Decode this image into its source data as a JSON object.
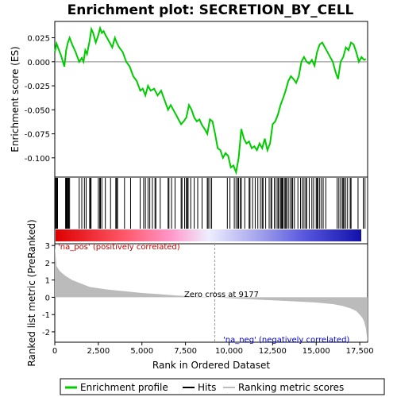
{
  "chart_data": {
    "type": "line",
    "title": "Enrichment plot: SECRETION_BY_CELL",
    "xlabel": "Rank in Ordered Dataset",
    "ylabel_top": "Enrichment score (ES)",
    "ylabel_bottom": "Ranked list metric (PreRanked)",
    "xlim": [
      0,
      17950
    ],
    "es_ylim": [
      -0.12,
      0.042
    ],
    "metric_ylim": [
      -2.6,
      3.1
    ],
    "x_ticks": [
      0,
      2500,
      5000,
      7500,
      10000,
      12500,
      15000,
      17500
    ],
    "x_tick_labels": [
      "0",
      "2,500",
      "5,000",
      "7,500",
      "10,000",
      "12,500",
      "15,000",
      "17,500"
    ],
    "es_ticks": [
      0.025,
      0.0,
      -0.025,
      -0.05,
      -0.075,
      -0.1
    ],
    "es_tick_labels": [
      "0.025",
      "0.000",
      "-0.025",
      "-0.050",
      "-0.075",
      "-0.100"
    ],
    "metric_ticks": [
      3,
      2,
      1,
      0,
      -1,
      -2
    ],
    "metric_tick_labels": [
      "3",
      "2",
      "1",
      "0",
      "-1",
      "-2"
    ],
    "annotation_pos": "'na_pos' (positively correlated)",
    "annotation_neg": "'na_neg' (negatively correlated)",
    "annotation_zero": "Zero cross at 9177",
    "zero_cross": 9177,
    "series": [
      {
        "name": "Enrichment profile",
        "color": "#00cc00",
        "x": [
          0,
          100,
          200,
          350,
          550,
          650,
          750,
          850,
          1000,
          1200,
          1400,
          1550,
          1650,
          1750,
          1850,
          2000,
          2100,
          2200,
          2350,
          2500,
          2600,
          2700,
          2800,
          2900,
          3000,
          3150,
          3300,
          3450,
          3550,
          3700,
          3900,
          4100,
          4300,
          4500,
          4700,
          4900,
          5050,
          5200,
          5350,
          5500,
          5700,
          5900,
          6100,
          6300,
          6500,
          6650,
          6800,
          6950,
          7100,
          7250,
          7400,
          7550,
          7700,
          7850,
          8000,
          8150,
          8300,
          8450,
          8600,
          8750,
          8900,
          9050,
          9200,
          9350,
          9500,
          9650,
          9800,
          9950,
          10100,
          10250,
          10400,
          10550,
          10700,
          10850,
          11000,
          11150,
          11300,
          11450,
          11600,
          11750,
          11900,
          12050,
          12200,
          12350,
          12500,
          12650,
          12800,
          12950,
          13100,
          13250,
          13400,
          13550,
          13700,
          13850,
          14000,
          14150,
          14300,
          14450,
          14600,
          14750,
          14900,
          15050,
          15200,
          15350,
          15500,
          15650,
          15800,
          15950,
          16100,
          16250,
          16400,
          16550,
          16700,
          16850,
          17000,
          17150,
          17300,
          17450,
          17600,
          17750,
          17850
        ],
        "y": [
          0.01,
          0.019,
          0.014,
          0.007,
          -0.005,
          0.012,
          0.02,
          0.025,
          0.018,
          0.01,
          0.0,
          0.004,
          0.0,
          0.012,
          0.008,
          0.022,
          0.034,
          0.03,
          0.02,
          0.028,
          0.035,
          0.03,
          0.032,
          0.028,
          0.025,
          0.02,
          0.015,
          0.025,
          0.02,
          0.015,
          0.01,
          0.0,
          -0.005,
          -0.015,
          -0.02,
          -0.03,
          -0.028,
          -0.035,
          -0.025,
          -0.03,
          -0.028,
          -0.035,
          -0.03,
          -0.04,
          -0.05,
          -0.045,
          -0.05,
          -0.055,
          -0.06,
          -0.065,
          -0.062,
          -0.058,
          -0.045,
          -0.05,
          -0.058,
          -0.062,
          -0.06,
          -0.066,
          -0.07,
          -0.075,
          -0.06,
          -0.062,
          -0.075,
          -0.09,
          -0.092,
          -0.1,
          -0.095,
          -0.098,
          -0.11,
          -0.108,
          -0.115,
          -0.1,
          -0.07,
          -0.08,
          -0.085,
          -0.083,
          -0.09,
          -0.088,
          -0.092,
          -0.085,
          -0.09,
          -0.08,
          -0.092,
          -0.085,
          -0.065,
          -0.062,
          -0.055,
          -0.045,
          -0.038,
          -0.03,
          -0.02,
          -0.015,
          -0.018,
          -0.022,
          -0.015,
          0.0,
          0.005,
          0.0,
          -0.002,
          0.002,
          -0.004,
          0.01,
          0.018,
          0.02,
          0.015,
          0.01,
          0.005,
          0.0,
          -0.01,
          -0.018,
          0.0,
          0.005,
          0.015,
          0.012,
          0.02,
          0.018,
          0.01,
          0.0,
          0.005,
          0.002,
          0.003
        ]
      },
      {
        "name": "Hits",
        "color": "#000000"
      },
      {
        "name": "Ranking metric scores",
        "color": "#bbbbbb",
        "x": [
          0,
          100,
          300,
          600,
          1000,
          1500,
          2000,
          3000,
          4000,
          5000,
          6000,
          7000,
          8000,
          9177,
          10000,
          11000,
          12000,
          13000,
          14000,
          15000,
          16000,
          16500,
          17000,
          17300,
          17500,
          17650,
          17750,
          17850,
          17950
        ],
        "y": [
          3.0,
          1.8,
          1.5,
          1.25,
          1.0,
          0.8,
          0.6,
          0.45,
          0.35,
          0.25,
          0.18,
          0.1,
          0.05,
          0.0,
          -0.05,
          -0.1,
          -0.15,
          -0.2,
          -0.25,
          -0.3,
          -0.4,
          -0.5,
          -0.65,
          -0.8,
          -1.0,
          -1.2,
          -1.4,
          -1.8,
          -2.6
        ]
      }
    ],
    "hit_positions": [
      40,
      90,
      130,
      160,
      620,
      660,
      700,
      730,
      780,
      800,
      850,
      1400,
      1550,
      1700,
      1800,
      2000,
      2050,
      2080,
      2500,
      2580,
      2620,
      2700,
      2900,
      3200,
      3500,
      3550,
      3600,
      4000,
      4350,
      4900,
      5100,
      5200,
      5350,
      5450,
      5600,
      5750,
      5800,
      6050,
      6500,
      6550,
      6700,
      6900,
      7250,
      7300,
      7450,
      7550,
      7600,
      7650,
      7800,
      8000,
      8200,
      8450,
      8750,
      8800,
      8900,
      9000,
      9900,
      10050,
      10300,
      10400,
      10500,
      10550,
      10650,
      10700,
      10900,
      11150,
      11200,
      11350,
      11500,
      11650,
      11800,
      11900,
      11950,
      12100,
      12300,
      12400,
      12450,
      12600,
      12700,
      12800,
      12850,
      12950,
      13000,
      13050,
      13100,
      13200,
      13250,
      13300,
      13400,
      13500,
      13600,
      13650,
      13750,
      13950,
      14100,
      14200,
      14300,
      14400,
      14450,
      14600,
      14750,
      14850,
      15000,
      15050,
      15100,
      15200,
      15300,
      15400,
      15550,
      16200,
      16300,
      16400,
      16500,
      16550,
      16600,
      16700,
      16800,
      16950,
      17000,
      17400,
      17700,
      17800
    ],
    "legend": [
      {
        "label": "Enrichment profile",
        "color": "#00cc00"
      },
      {
        "label": "Hits",
        "color": "#000000"
      },
      {
        "label": "Ranking metric scores",
        "color": "#bbbbbb"
      }
    ]
  }
}
